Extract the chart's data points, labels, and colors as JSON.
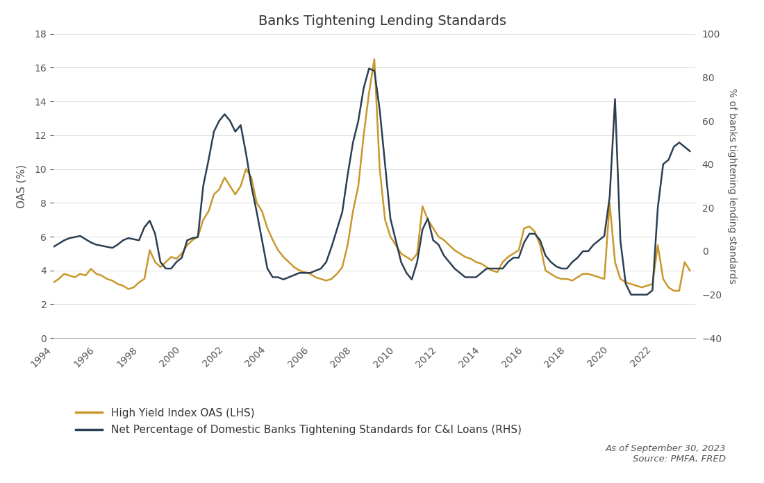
{
  "title": "Banks Tightening Lending Standards",
  "ylabel_left": "OAS (%)",
  "ylabel_right": "% of banks tightening lending standards",
  "source_text": "As of September 30, 2023\nSource: PMFA, FRED",
  "legend_labels": [
    "High Yield Index OAS (LHS)",
    "Net Percentage of Domestic Banks Tightening Standards for C&I Loans (RHS)"
  ],
  "hy_color": "#C9972B",
  "bank_color": "#2B3F52",
  "background_color": "#FFFFFF",
  "ylim_left": [
    0,
    18
  ],
  "ylim_right": [
    -40,
    100
  ],
  "yticks_left": [
    0,
    2,
    4,
    6,
    8,
    10,
    12,
    14,
    16,
    18
  ],
  "yticks_right": [
    -40,
    -20,
    0,
    20,
    40,
    60,
    80,
    100
  ],
  "xticks": [
    1994,
    1996,
    1998,
    2000,
    2002,
    2004,
    2006,
    2008,
    2010,
    2012,
    2014,
    2016,
    2018,
    2020,
    2022
  ],
  "hy_dates": [
    1994.0,
    1994.25,
    1994.5,
    1994.75,
    1995.0,
    1995.25,
    1995.5,
    1995.75,
    1996.0,
    1996.25,
    1996.5,
    1996.75,
    1997.0,
    1997.25,
    1997.5,
    1997.75,
    1998.0,
    1998.25,
    1998.5,
    1998.75,
    1999.0,
    1999.25,
    1999.5,
    1999.75,
    2000.0,
    2000.25,
    2000.5,
    2000.75,
    2001.0,
    2001.25,
    2001.5,
    2001.75,
    2002.0,
    2002.25,
    2002.5,
    2002.75,
    2003.0,
    2003.25,
    2003.5,
    2003.75,
    2004.0,
    2004.25,
    2004.5,
    2004.75,
    2005.0,
    2005.25,
    2005.5,
    2005.75,
    2006.0,
    2006.25,
    2006.5,
    2006.75,
    2007.0,
    2007.25,
    2007.5,
    2007.75,
    2008.0,
    2008.25,
    2008.5,
    2008.75,
    2009.0,
    2009.25,
    2009.5,
    2009.75,
    2010.0,
    2010.25,
    2010.5,
    2010.75,
    2011.0,
    2011.25,
    2011.5,
    2011.75,
    2012.0,
    2012.25,
    2012.5,
    2012.75,
    2013.0,
    2013.25,
    2013.5,
    2013.75,
    2014.0,
    2014.25,
    2014.5,
    2014.75,
    2015.0,
    2015.25,
    2015.5,
    2015.75,
    2016.0,
    2016.25,
    2016.5,
    2016.75,
    2017.0,
    2017.25,
    2017.5,
    2017.75,
    2018.0,
    2018.25,
    2018.5,
    2018.75,
    2019.0,
    2019.25,
    2019.5,
    2019.75,
    2020.0,
    2020.25,
    2020.5,
    2020.75,
    2021.0,
    2021.25,
    2021.5,
    2021.75,
    2022.0,
    2022.25,
    2022.5,
    2022.75,
    2023.0,
    2023.25,
    2023.5,
    2023.75
  ],
  "hy_values": [
    3.3,
    3.5,
    3.8,
    3.7,
    3.6,
    3.8,
    3.7,
    4.1,
    3.8,
    3.7,
    3.5,
    3.4,
    3.2,
    3.1,
    2.9,
    3.0,
    3.3,
    3.5,
    5.2,
    4.5,
    4.2,
    4.5,
    4.8,
    4.7,
    5.0,
    5.5,
    5.8,
    6.0,
    7.0,
    7.5,
    8.5,
    8.8,
    9.5,
    9.0,
    8.5,
    9.0,
    10.0,
    9.5,
    8.0,
    7.5,
    6.5,
    5.8,
    5.2,
    4.8,
    4.5,
    4.2,
    4.0,
    3.9,
    3.8,
    3.6,
    3.5,
    3.4,
    3.5,
    3.8,
    4.2,
    5.5,
    7.5,
    9.0,
    12.0,
    14.5,
    16.5,
    10.0,
    7.0,
    6.0,
    5.5,
    5.0,
    4.8,
    4.6,
    5.0,
    7.8,
    7.0,
    6.5,
    6.0,
    5.8,
    5.5,
    5.2,
    5.0,
    4.8,
    4.7,
    4.5,
    4.4,
    4.2,
    4.0,
    3.9,
    4.5,
    4.8,
    5.0,
    5.2,
    6.5,
    6.6,
    6.3,
    5.5,
    4.0,
    3.8,
    3.6,
    3.5,
    3.5,
    3.4,
    3.6,
    3.8,
    3.8,
    3.7,
    3.6,
    3.5,
    8.0,
    4.5,
    3.5,
    3.3,
    3.2,
    3.1,
    3.0,
    3.1,
    3.2,
    5.5,
    3.5,
    3.0,
    2.8,
    2.8,
    4.5,
    4.0
  ],
  "bank_dates": [
    1994.0,
    1994.25,
    1994.5,
    1994.75,
    1995.0,
    1995.25,
    1995.5,
    1995.75,
    1996.0,
    1996.25,
    1996.5,
    1996.75,
    1997.0,
    1997.25,
    1997.5,
    1997.75,
    1998.0,
    1998.25,
    1998.5,
    1998.75,
    1999.0,
    1999.25,
    1999.5,
    1999.75,
    2000.0,
    2000.25,
    2000.5,
    2000.75,
    2001.0,
    2001.25,
    2001.5,
    2001.75,
    2002.0,
    2002.25,
    2002.5,
    2002.75,
    2003.0,
    2003.25,
    2003.5,
    2003.75,
    2004.0,
    2004.25,
    2004.5,
    2004.75,
    2005.0,
    2005.25,
    2005.5,
    2005.75,
    2006.0,
    2006.25,
    2006.5,
    2006.75,
    2007.0,
    2007.25,
    2007.5,
    2007.75,
    2008.0,
    2008.25,
    2008.5,
    2008.75,
    2009.0,
    2009.25,
    2009.5,
    2009.75,
    2010.0,
    2010.25,
    2010.5,
    2010.75,
    2011.0,
    2011.25,
    2011.5,
    2011.75,
    2012.0,
    2012.25,
    2012.5,
    2012.75,
    2013.0,
    2013.25,
    2013.5,
    2013.75,
    2014.0,
    2014.25,
    2014.5,
    2014.75,
    2015.0,
    2015.25,
    2015.5,
    2015.75,
    2016.0,
    2016.25,
    2016.5,
    2016.75,
    2017.0,
    2017.25,
    2017.5,
    2017.75,
    2018.0,
    2018.25,
    2018.5,
    2018.75,
    2019.0,
    2019.25,
    2019.5,
    2019.75,
    2020.0,
    2020.25,
    2020.5,
    2020.75,
    2021.0,
    2021.25,
    2021.5,
    2021.75,
    2022.0,
    2022.25,
    2022.5,
    2022.75,
    2023.0,
    2023.25,
    2023.5,
    2023.75
  ],
  "bank_values": [
    2.0,
    3.5,
    5.0,
    6.0,
    6.5,
    7.0,
    5.5,
    4.0,
    3.0,
    2.5,
    2.0,
    1.5,
    3.0,
    5.0,
    6.0,
    5.5,
    5.0,
    11.0,
    14.0,
    8.0,
    -5.0,
    -8.0,
    -8.0,
    -5.0,
    -3.0,
    5.0,
    6.0,
    6.5,
    30.0,
    42.0,
    55.0,
    60.0,
    63.0,
    60.0,
    55.0,
    58.0,
    45.0,
    30.0,
    18.0,
    5.0,
    -8.0,
    -12.0,
    -12.0,
    -13.0,
    -12.0,
    -11.0,
    -10.0,
    -10.0,
    -10.0,
    -9.0,
    -8.0,
    -5.0,
    2.0,
    10.0,
    18.0,
    35.0,
    50.0,
    60.0,
    75.0,
    84.0,
    83.0,
    65.0,
    40.0,
    15.0,
    5.0,
    -5.0,
    -10.0,
    -13.0,
    -5.0,
    10.0,
    15.0,
    5.0,
    3.0,
    -2.0,
    -5.0,
    -8.0,
    -10.0,
    -12.0,
    -12.0,
    -12.0,
    -10.0,
    -8.0,
    -8.0,
    -8.0,
    -8.0,
    -5.0,
    -3.0,
    -3.0,
    4.0,
    8.0,
    8.0,
    5.0,
    -2.0,
    -5.0,
    -7.0,
    -8.0,
    -8.0,
    -5.0,
    -3.0,
    0.0,
    0.0,
    3.0,
    5.0,
    7.0,
    25.0,
    70.0,
    5.0,
    -15.0,
    -20.0,
    -20.0,
    -20.0,
    -20.0,
    -18.0,
    20.0,
    40.0,
    42.0,
    48.0,
    50.0,
    48.0,
    46.0
  ]
}
